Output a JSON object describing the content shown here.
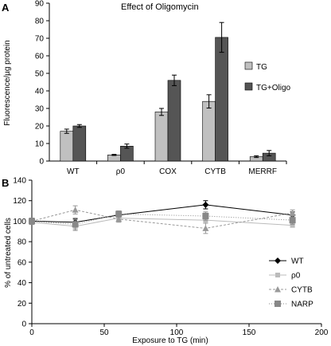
{
  "panels": {
    "a_letter": "A",
    "b_letter": "B"
  },
  "chart_data": [
    {
      "panel": "A",
      "type": "bar",
      "title": "Effect of Oligomycin",
      "xlabel": "",
      "ylabel": "Fluorescence/µg protein",
      "ylim": [
        0,
        90
      ],
      "yticks": [
        0,
        10,
        20,
        30,
        40,
        50,
        60,
        70,
        80,
        90
      ],
      "categories": [
        "WT",
        "ρ0",
        "COX",
        "CYTB",
        "MERRF"
      ],
      "series": [
        {
          "name": "TG",
          "color": "#c0c0c0",
          "values": [
            17,
            3.5,
            28,
            34,
            2.5
          ],
          "errors": [
            1.2,
            0.3,
            2.0,
            3.8,
            0.5
          ]
        },
        {
          "name": "TG+Oligo",
          "color": "#555555",
          "values": [
            20,
            8.5,
            46,
            70.5,
            4.5
          ],
          "errors": [
            0.8,
            1.2,
            3.0,
            8.5,
            1.5
          ]
        }
      ],
      "legend": "right",
      "grid": false
    },
    {
      "panel": "B",
      "type": "line",
      "title": "",
      "xlabel": "Exposure to TG (min)",
      "ylabel": "% of untreated cells",
      "xlim": [
        0,
        200
      ],
      "ylim": [
        0,
        140
      ],
      "xticks": [
        0,
        50,
        100,
        150,
        200
      ],
      "yticks": [
        0,
        20,
        40,
        60,
        80,
        100,
        120,
        140
      ],
      "x": [
        0,
        30,
        60,
        120,
        180
      ],
      "series": [
        {
          "name": "WT",
          "color": "#000000",
          "dash": "",
          "marker": "diamond",
          "values": [
            100,
            99,
            106,
            116,
            106
          ],
          "errors": [
            3,
            3,
            3,
            4,
            3
          ]
        },
        {
          "name": "ρ0",
          "color": "#bbbbbb",
          "dash": "",
          "marker": "square-small",
          "values": [
            99,
            95,
            103,
            101,
            96
          ],
          "errors": [
            2,
            3,
            2,
            3,
            2
          ]
        },
        {
          "name": "CYTB",
          "color": "#999999",
          "dash": "3,2",
          "marker": "triangle",
          "values": [
            100,
            111,
            102,
            93,
            108
          ],
          "errors": [
            3,
            4,
            3,
            5,
            3
          ]
        },
        {
          "name": "NARP",
          "color": "#888888",
          "dash": "1,2",
          "marker": "square",
          "values": [
            100,
            97,
            107,
            105,
            101
          ],
          "errors": [
            3,
            6,
            3,
            4,
            4
          ]
        }
      ],
      "legend": "right",
      "grid": false
    }
  ]
}
